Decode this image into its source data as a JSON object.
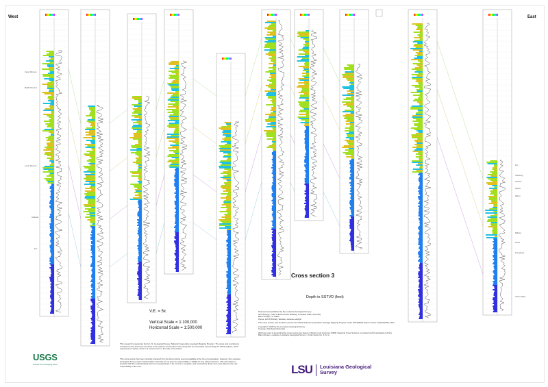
{
  "header": {
    "west": "West",
    "east": "East"
  },
  "title": "Cross section 3",
  "depth_label": "Depth in SSTVD (feet)",
  "scales": {
    "ve": "V.E. = 5x",
    "vertical": "Vertical Scale = 1:100,000",
    "horizontal": "Horizontal Scale = 1:500,000"
  },
  "left_tops": [
    "Upper Miocene",
    "Middle Miocene",
    "Lower Miocene",
    "Anahuac",
    "Frio"
  ],
  "right_tops": [
    "Frio",
    "Vicksburg",
    "Jackson",
    "Sparta",
    "Wilcox",
    "Midway",
    "Austin",
    "Tuscaloosa",
    "Cotton Valley"
  ],
  "disclaimer": [
    "This research is supported by the U.S. Geological Survey, National Cooperative Geologic Mapping Program. The views and conclusions contained in this document are those of the authors and should not be interpreted as necessarily representing the official policies, either expressed or implied, of the U.S. Government or the state of Louisiana.",
    "This cross section has been carefully prepared from the best existing sources available at the time of preparation. However, the Louisiana Geological Survey and Louisiana State University do not assume responsibility or liability for any reliance thereon. This information is provided with the understanding that it is not guaranteed to be correct or complete, and conclusions drawn from such data are the sole responsibility of the user."
  ],
  "credits": [
    "Produced and published by the Louisiana Geological Survey",
    "3079 Energy, Coast & Environment Building, Louisiana State University",
    "Baton Rouge, LA 70803",
    "Phone: 225-578-5320, Website: www.lsu.edu/lgs/",
    "This cross section was funded in part by the USGS National Cooperative Geologic Mapping Program under STATEMAP award number G24AC00333, 2024",
    "Copyright © 2025 by the Louisiana Geological Survey",
    "Geology: Abimbola Akintomide",
    "Well tops used in generating the cross section are based on Bebout and Gutierrez (1983): Regional Cross Sections, Louisiana Gulf Coast (Eastern Part), Baton Rouge, Louisiana, Louisiana Geological Survey, v. Folio Series No. 6, 10 p."
  ],
  "logos": {
    "usgs": "USGS",
    "usgs_tag": "science for a changing world",
    "lsu": "LSU",
    "lsu_name_1": "Louisiana Geological",
    "lsu_name_2": "Survey"
  },
  "colors": {
    "lsu_purple": "#461d7c",
    "usgs_green": "#1a7a4a"
  }
}
